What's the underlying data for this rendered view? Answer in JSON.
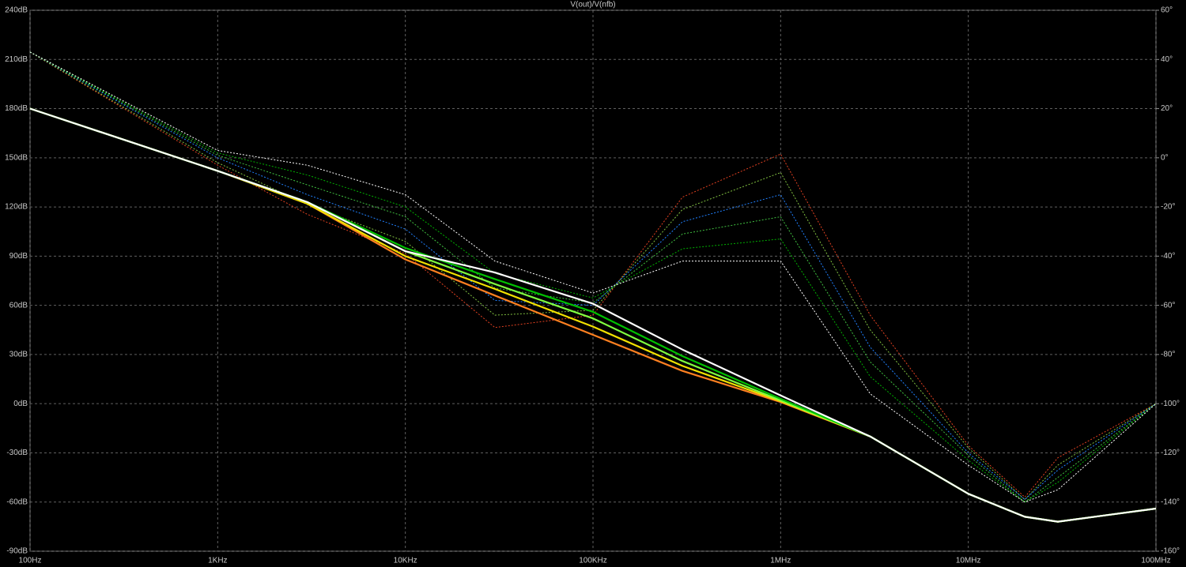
{
  "chart_data": {
    "type": "line",
    "title": "V(out)/V(nfb)",
    "log_x": true,
    "grid": true,
    "x": [
      100,
      1000,
      3000,
      10000,
      30000,
      100000,
      300000,
      1000000,
      3000000,
      10000000,
      20000000,
      30000000,
      100000000
    ],
    "xlim": [
      100,
      100000000
    ],
    "xticks": [
      {
        "value": 100,
        "label": "100Hz"
      },
      {
        "value": 1000,
        "label": "1KHz"
      },
      {
        "value": 10000,
        "label": "10KHz"
      },
      {
        "value": 100000,
        "label": "100KHz"
      },
      {
        "value": 1000000,
        "label": "1MHz"
      },
      {
        "value": 10000000,
        "label": "10MHz"
      },
      {
        "value": 100000000,
        "label": "100MHz"
      }
    ],
    "ylim": [
      -90,
      240
    ],
    "yticks": [
      {
        "value": -90,
        "label": "-90dB"
      },
      {
        "value": -60,
        "label": "-60dB"
      },
      {
        "value": -30,
        "label": "-30dB"
      },
      {
        "value": 0,
        "label": "0dB"
      },
      {
        "value": 30,
        "label": "30dB"
      },
      {
        "value": 60,
        "label": "60dB"
      },
      {
        "value": 90,
        "label": "90dB"
      },
      {
        "value": 120,
        "label": "120dB"
      },
      {
        "value": 150,
        "label": "150dB"
      },
      {
        "value": 180,
        "label": "180dB"
      },
      {
        "value": 210,
        "label": "210dB"
      },
      {
        "value": 240,
        "label": "240dB"
      }
    ],
    "y2lim": [
      -160,
      60
    ],
    "y2ticks": [
      {
        "value": -160,
        "label": "-160°"
      },
      {
        "value": -140,
        "label": "-140°"
      },
      {
        "value": -120,
        "label": "-120°"
      },
      {
        "value": -100,
        "label": "-100°"
      },
      {
        "value": -80,
        "label": "-80°"
      },
      {
        "value": -60,
        "label": "-60°"
      },
      {
        "value": -40,
        "label": "-40°"
      },
      {
        "value": -20,
        "label": "-20°"
      },
      {
        "value": 0,
        "label": "0°"
      },
      {
        "value": 20,
        "label": "20°"
      },
      {
        "value": 40,
        "label": "40°"
      },
      {
        "value": 60,
        "label": "60°"
      }
    ],
    "series": [
      {
        "color": "#ffffff",
        "dash": "solid",
        "values": [
          180,
          142,
          123,
          93,
          80,
          61,
          33,
          5,
          -20,
          -55,
          -69,
          -72,
          -64
        ]
      },
      {
        "color": "#00c000",
        "dash": "solid",
        "values": [
          180,
          142,
          123,
          95,
          76,
          56,
          29,
          3,
          -20,
          -55,
          -69,
          -72,
          -64
        ]
      },
      {
        "color": "#80ff40",
        "dash": "solid",
        "values": [
          180,
          142,
          123,
          93,
          73,
          52,
          26,
          2,
          -20,
          -55,
          -69,
          -72,
          -64
        ]
      },
      {
        "color": "#f0e000",
        "dash": "solid",
        "values": [
          180,
          142,
          122,
          90,
          70,
          47,
          23,
          1.5,
          -20,
          -55,
          -69,
          -72,
          -64
        ]
      },
      {
        "color": "#ff8020",
        "dash": "solid",
        "values": [
          180,
          142,
          122,
          88,
          66,
          42,
          20,
          1,
          -20,
          -55,
          -69,
          -72,
          -64
        ]
      },
      {
        "color": "#ffffff",
        "dash": "dotted",
        "axis": "y2",
        "values": [
          43,
          3,
          -3,
          -15,
          -42,
          -55,
          -42,
          -42,
          -96,
          -125,
          -140,
          -135,
          -100
        ]
      },
      {
        "color": "#00b000",
        "dash": "dotted",
        "axis": "y2",
        "values": [
          43,
          2,
          -7,
          -20,
          -47,
          -57,
          -37,
          -33,
          -89,
          -123,
          -140,
          -132,
          -100
        ]
      },
      {
        "color": "#40c040",
        "dash": "dotted",
        "axis": "y2",
        "values": [
          43,
          1,
          -11,
          -24,
          -53,
          -59,
          -31,
          -24,
          -83,
          -121,
          -140,
          -130,
          -100
        ]
      },
      {
        "color": "#2080ff",
        "dash": "dotted",
        "axis": "y2",
        "values": [
          43,
          0,
          -15,
          -29,
          -58,
          -60,
          -26,
          -15,
          -77,
          -120,
          -139,
          -127,
          -100
        ]
      },
      {
        "color": "#80c040",
        "dash": "dotted",
        "axis": "y2",
        "values": [
          43,
          -2,
          -19,
          -34,
          -64,
          -62,
          -21,
          -6,
          -70,
          -118,
          -139,
          -125,
          -100
        ]
      },
      {
        "color": "#e04020",
        "dash": "dotted",
        "axis": "y2",
        "values": [
          43,
          -3,
          -23,
          -39,
          -69,
          -64,
          -16,
          1.5,
          -64,
          -117,
          -138,
          -122,
          -100
        ]
      }
    ]
  }
}
